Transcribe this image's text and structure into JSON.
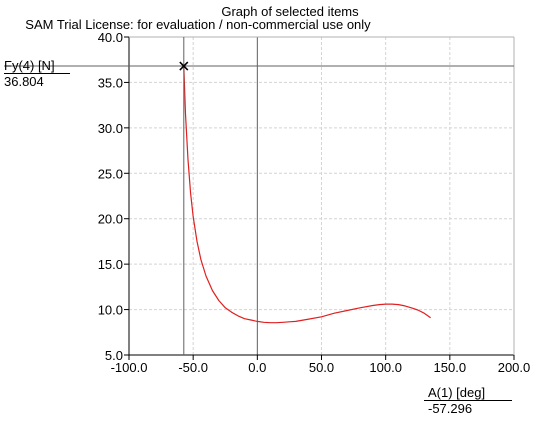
{
  "chart_data": {
    "type": "line",
    "title": "Graph of selected items",
    "subtitle": "SAM Trial License: for evaluation / non-commercial use only",
    "xlabel": "A(1) [deg]",
    "ylabel": "Fy(4) [N]",
    "xlim": [
      -100,
      200
    ],
    "ylim": [
      5,
      40
    ],
    "grid": true,
    "x_ticks": [
      "-100.0",
      "-50.0",
      "0.0",
      "50.0",
      "100.0",
      "150.0",
      "200.0"
    ],
    "y_ticks": [
      "5.0",
      "10.0",
      "15.0",
      "20.0",
      "25.0",
      "30.0",
      "35.0",
      "40.0"
    ],
    "x_tick_values": [
      -100,
      -50,
      0,
      50,
      100,
      150,
      200
    ],
    "y_tick_values": [
      5,
      10,
      15,
      20,
      25,
      30,
      35,
      40
    ],
    "series": [
      {
        "color": "#e02020",
        "x": [
          -57.3,
          -56,
          -54,
          -52,
          -50,
          -47,
          -44,
          -40,
          -35,
          -30,
          -25,
          -20,
          -15,
          -10,
          -5,
          0,
          5,
          10,
          15,
          20,
          25,
          30,
          40,
          50,
          60,
          70,
          80,
          90,
          95,
          100,
          105,
          110,
          115,
          120,
          125,
          130,
          135
        ],
        "y": [
          36.8,
          31.5,
          26.5,
          22.8,
          20.2,
          17.5,
          15.5,
          13.7,
          12.1,
          11.0,
          10.2,
          9.7,
          9.3,
          9.0,
          8.85,
          8.7,
          8.6,
          8.55,
          8.55,
          8.6,
          8.65,
          8.7,
          8.95,
          9.2,
          9.6,
          9.9,
          10.2,
          10.45,
          10.55,
          10.6,
          10.6,
          10.55,
          10.4,
          10.2,
          9.95,
          9.6,
          9.1
        ]
      }
    ],
    "cursor": {
      "x": -57.296,
      "y": 36.804
    },
    "readouts": {
      "y_label": "Fy(4) [N]",
      "y_value": "36.804",
      "x_label": "A(1) [deg]",
      "x_value": "-57.296"
    }
  }
}
